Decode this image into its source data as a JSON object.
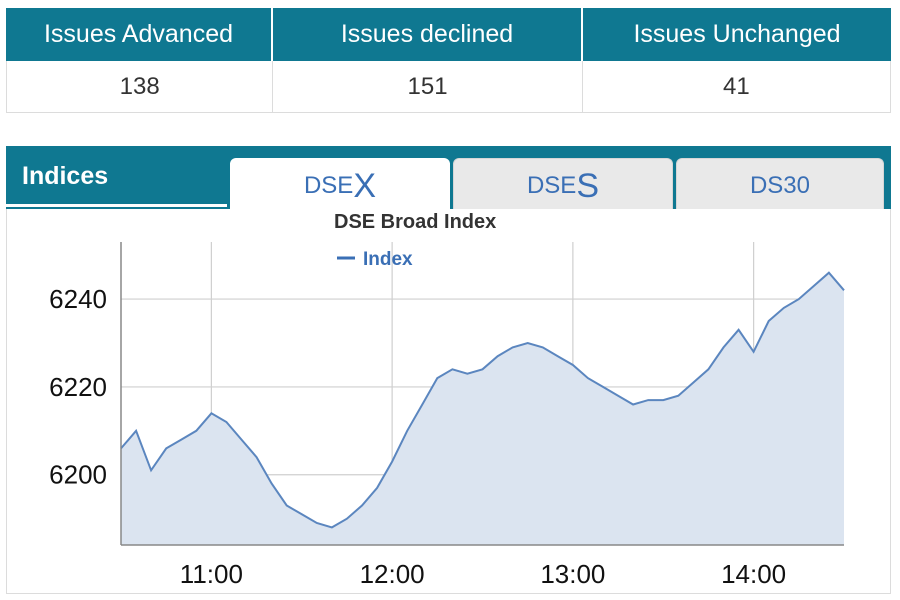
{
  "summary": {
    "headers": [
      "Issues Advanced",
      "Issues declined",
      "Issues Unchanged"
    ],
    "values": [
      "138",
      "151",
      "41"
    ]
  },
  "panel": {
    "title": "Indices",
    "tabs": [
      {
        "prefix": "DSE",
        "suffix": "X",
        "active": true
      },
      {
        "prefix": "DSE",
        "suffix": "S",
        "active": false
      },
      {
        "prefix": "DS30",
        "suffix": "",
        "active": false
      }
    ]
  },
  "colors": {
    "header_bg": "#0f7891",
    "line": "#5b86bf",
    "area": "#dbe4f0",
    "tab_text": "#3a6fb5"
  },
  "chart_data": {
    "type": "area",
    "title": "DSE Broad Index",
    "legend": [
      "Index"
    ],
    "legend_position": "top-left",
    "grid": true,
    "xlim": [
      "10:30",
      "14:30"
    ],
    "ylim": [
      6184,
      6253
    ],
    "y_ticks": [
      6200,
      6220,
      6240
    ],
    "x_ticks": [
      "11:00",
      "12:00",
      "13:00",
      "14:00"
    ],
    "series": [
      {
        "name": "Index",
        "x": [
          "10:30",
          "10:35",
          "10:40",
          "10:45",
          "10:50",
          "10:55",
          "11:00",
          "11:05",
          "11:10",
          "11:15",
          "11:20",
          "11:25",
          "11:30",
          "11:35",
          "11:40",
          "11:45",
          "11:50",
          "11:55",
          "12:00",
          "12:05",
          "12:10",
          "12:15",
          "12:20",
          "12:25",
          "12:30",
          "12:35",
          "12:40",
          "12:45",
          "12:50",
          "12:55",
          "13:00",
          "13:05",
          "13:10",
          "13:15",
          "13:20",
          "13:25",
          "13:30",
          "13:35",
          "13:40",
          "13:45",
          "13:50",
          "13:55",
          "14:00",
          "14:05",
          "14:10",
          "14:15",
          "14:20",
          "14:25",
          "14:30"
        ],
        "values": [
          6206,
          6210,
          6201,
          6206,
          6208,
          6210,
          6214,
          6212,
          6208,
          6204,
          6198,
          6193,
          6191,
          6189,
          6188,
          6190,
          6193,
          6197,
          6203,
          6210,
          6216,
          6222,
          6224,
          6223,
          6224,
          6227,
          6229,
          6230,
          6229,
          6227,
          6225,
          6222,
          6220,
          6218,
          6216,
          6217,
          6217,
          6218,
          6221,
          6224,
          6229,
          6233,
          6228,
          6235,
          6238,
          6240,
          6243,
          6246,
          6242
        ]
      }
    ]
  }
}
